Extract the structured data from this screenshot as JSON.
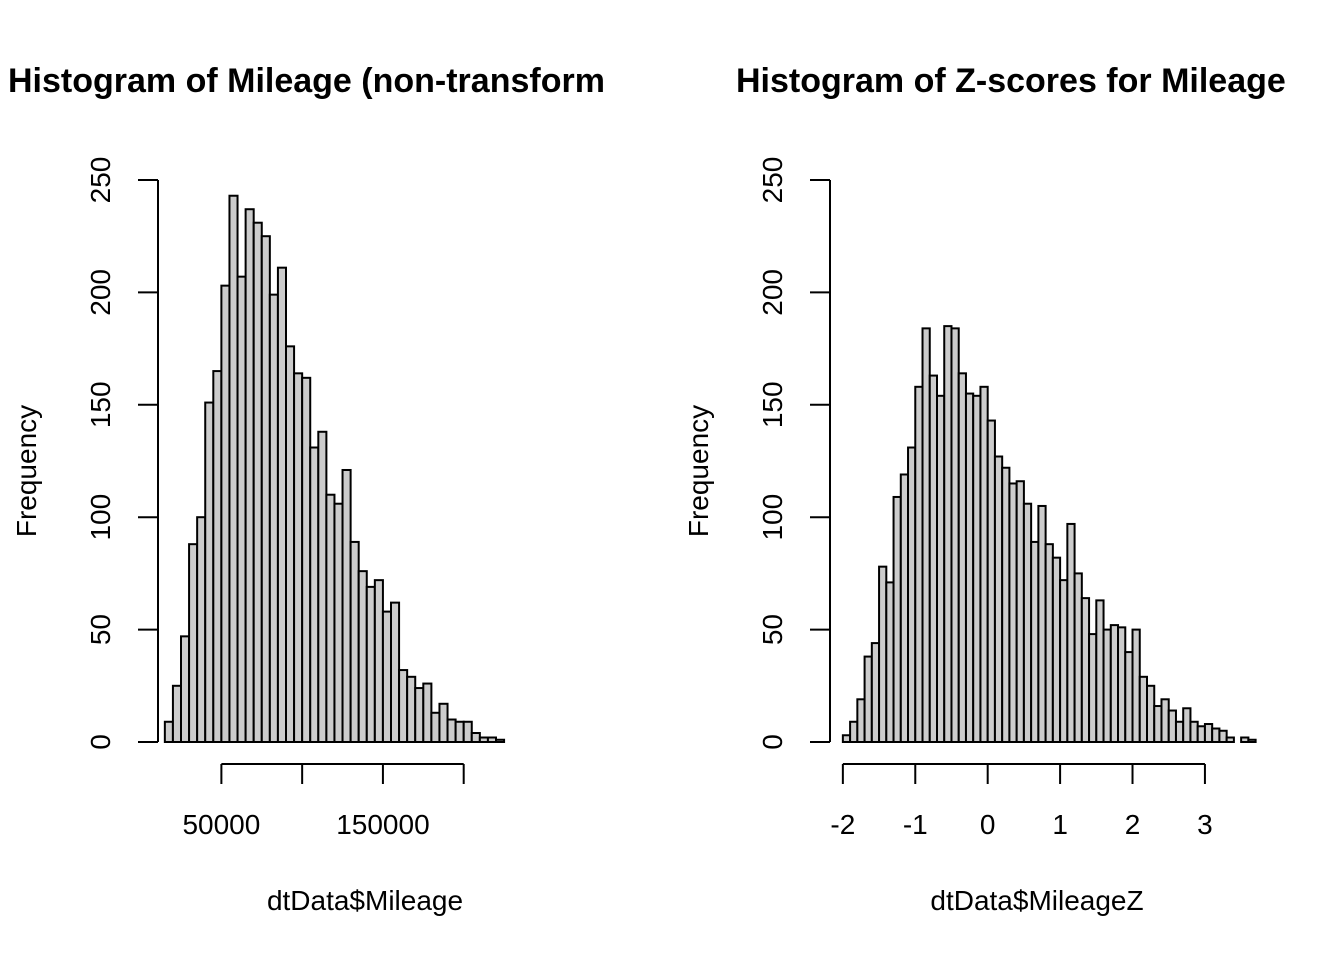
{
  "chart_data": [
    {
      "type": "bar",
      "title": "Histogram of Mileage (non-transform",
      "xlabel": "dtData$Mileage",
      "ylabel": "Frequency",
      "ylim": [
        0,
        250
      ],
      "yticks": [
        0,
        50,
        100,
        150,
        200,
        250
      ],
      "xticks": [
        50000,
        100000,
        150000,
        200000
      ],
      "xtick_labels": [
        "50000",
        "",
        "150000",
        ""
      ],
      "bin_start": 15000,
      "bin_width": 5000,
      "values": [
        9,
        25,
        47,
        88,
        100,
        151,
        165,
        203,
        243,
        207,
        237,
        231,
        225,
        199,
        211,
        176,
        164,
        162,
        131,
        138,
        110,
        106,
        121,
        89,
        76,
        69,
        72,
        58,
        62,
        32,
        29,
        24,
        26,
        13,
        17,
        10,
        9,
        9,
        4,
        2,
        2,
        1
      ],
      "grid": false,
      "bar_color": "#cccccc"
    },
    {
      "type": "bar",
      "title": "Histogram of Z-scores for Mileage",
      "xlabel": "dtData$MileageZ",
      "ylabel": "Frequency",
      "ylim": [
        0,
        250
      ],
      "yticks": [
        0,
        50,
        100,
        150,
        200,
        250
      ],
      "xticks": [
        -2,
        -1,
        0,
        1,
        2,
        3
      ],
      "xtick_labels": [
        "-2",
        "-1",
        "0",
        "1",
        "2",
        "3"
      ],
      "bin_start": -2.0,
      "bin_width": 0.1,
      "values": [
        3,
        9,
        19,
        38,
        44,
        78,
        71,
        109,
        119,
        131,
        158,
        184,
        163,
        154,
        185,
        184,
        164,
        155,
        154,
        158,
        143,
        127,
        122,
        115,
        116,
        106,
        89,
        105,
        88,
        82,
        72,
        97,
        75,
        64,
        48,
        63,
        50,
        52,
        51,
        40,
        50,
        29,
        25,
        16,
        19,
        14,
        9,
        15,
        9,
        7,
        8,
        6,
        5,
        2,
        0,
        2,
        1
      ],
      "grid": false,
      "bar_color": "#cccccc"
    }
  ]
}
